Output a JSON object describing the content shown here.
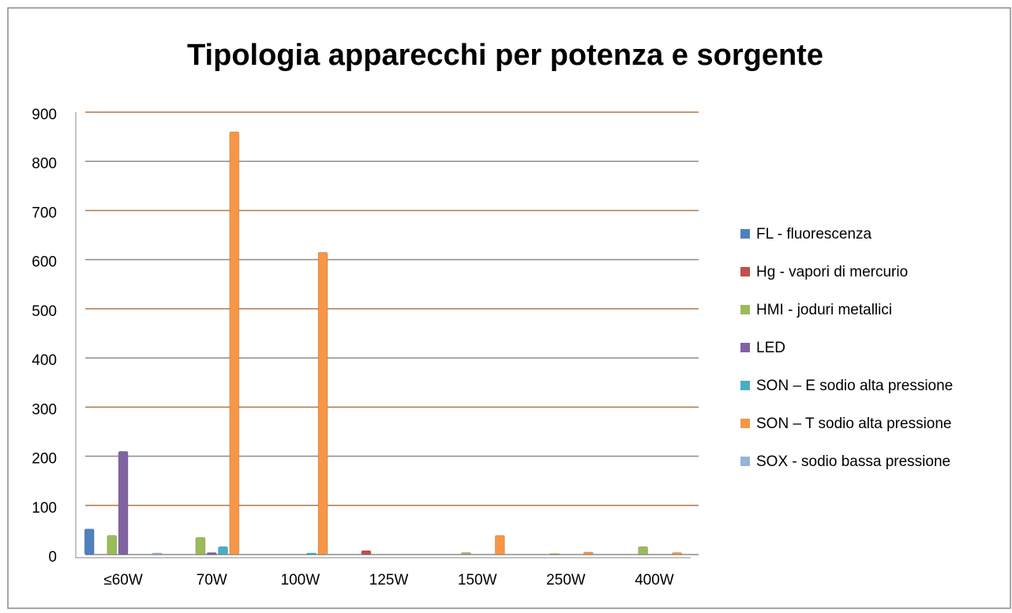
{
  "chart_data": {
    "type": "bar",
    "title": "Tipologia apparecchi per potenza e sorgente",
    "categories": [
      "≤60W",
      "70W",
      "100W",
      "125W",
      "150W",
      "250W",
      "400W"
    ],
    "series": [
      {
        "name": "FL - fluorescenza",
        "color": "#4f81bd",
        "values": [
          52,
          0,
          0,
          0,
          0,
          0,
          0
        ]
      },
      {
        "name": "Hg - vapori di mercurio",
        "color": "#c0504d",
        "values": [
          0,
          0,
          0,
          8,
          0,
          0,
          0
        ]
      },
      {
        "name": "HMI - joduri metallici",
        "color": "#9bbb59",
        "values": [
          39,
          35,
          0,
          0,
          4,
          2,
          16
        ]
      },
      {
        "name": "LED",
        "color": "#8064a2",
        "values": [
          210,
          4,
          0,
          0,
          0,
          0,
          0
        ]
      },
      {
        "name": "SON – E sodio alta pressione",
        "color": "#4bacc6",
        "values": [
          0,
          16,
          3,
          0,
          0,
          0,
          0
        ]
      },
      {
        "name": "SON – T sodio alta pressione",
        "color": "#f79646",
        "values": [
          0,
          860,
          615,
          0,
          39,
          5,
          4
        ]
      },
      {
        "name": "SOX - sodio bassa pressione",
        "color": "#95b3d7",
        "values": [
          3,
          0,
          0,
          0,
          0,
          0,
          0
        ]
      }
    ],
    "ylim": [
      0,
      900
    ],
    "yticks": [
      0,
      100,
      200,
      300,
      400,
      500,
      600,
      700,
      800,
      900
    ],
    "grid": true,
    "legend": "right"
  }
}
